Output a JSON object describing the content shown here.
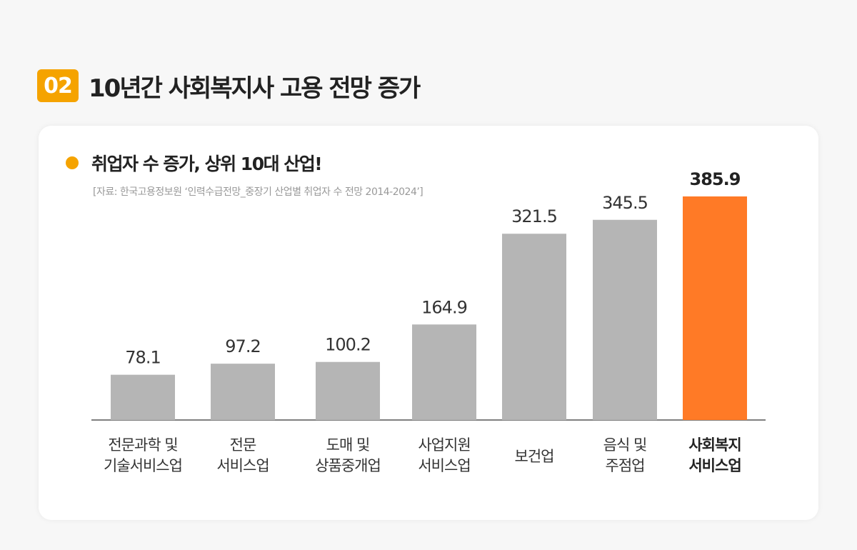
{
  "header": {
    "number": "02",
    "title": "10년간 사회복지사 고용 전망 증가"
  },
  "colors": {
    "accent": "#f5a300",
    "highlight_bar": "#ff7a26",
    "default_bar": "#b5b5b5",
    "axis": "#555555"
  },
  "chart_data": {
    "type": "bar",
    "title": "취업자 수 증가, 상위 10대 산업!",
    "subtitle": "[자료: 한국고용정보원 ‘인력수급전망_중장기 산업별 취업자 수 전망 2014-2024’]",
    "categories": [
      [
        "전문과학 및",
        "기술서비스업"
      ],
      [
        "전문",
        "서비스업"
      ],
      [
        "도매 및",
        "상품중개업"
      ],
      [
        "사업지원",
        "서비스업"
      ],
      [
        "보건업"
      ],
      [
        "음식 및",
        "주점업"
      ],
      [
        "사회복지",
        "서비스업"
      ]
    ],
    "values": [
      78.1,
      97.2,
      100.2,
      164.9,
      321.5,
      345.5,
      385.9
    ],
    "value_labels": [
      "78.1",
      "97.2",
      "100.2",
      "164.9",
      "321.5",
      "345.5",
      "385.9"
    ],
    "highlight_index": 6,
    "grid": false,
    "xlabel": "",
    "ylabel": ""
  }
}
